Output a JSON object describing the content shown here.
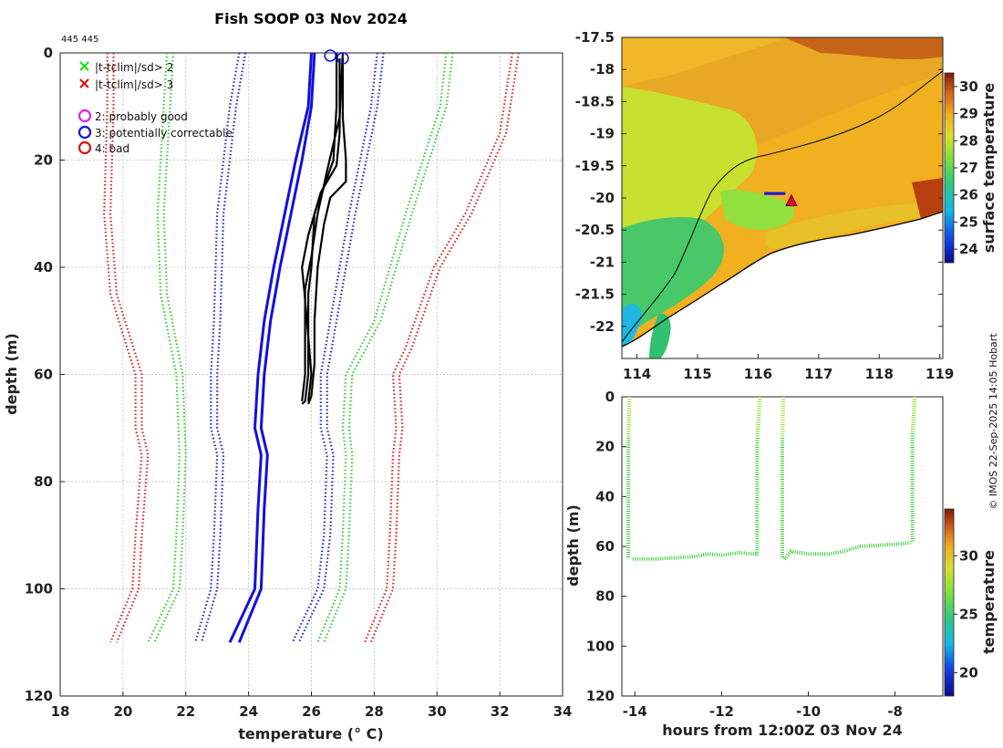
{
  "figure": {
    "title": "Fish SOOP 03 Nov 2024",
    "id_label": "445 445",
    "credit": "© IMOS 22-Sep-2025 14:05 Hobart"
  },
  "chart_data": [
    {
      "type": "line",
      "name": "profile",
      "xlabel": "temperature (° C)",
      "ylabel": "depth (m)",
      "xlim": [
        18,
        34
      ],
      "ylim": [
        0,
        120
      ],
      "y_reversed": true,
      "xticks": [
        18,
        20,
        22,
        24,
        26,
        28,
        30,
        32,
        34
      ],
      "yticks": [
        0,
        20,
        40,
        60,
        80,
        100,
        120
      ],
      "grid": true,
      "legend": {
        "position": "top-left",
        "entries": [
          {
            "marker": "x",
            "color": "#22dd22",
            "label": "|t-tclim|/sd> 2"
          },
          {
            "marker": "x",
            "color": "#dd1111",
            "label": "|t-tclim|/sd> 3"
          },
          {
            "marker": "o",
            "color": "#dd22dd",
            "label": "2: probably good"
          },
          {
            "marker": "o",
            "color": "#1111dd",
            "label": "3: potentially correctable"
          },
          {
            "marker": "o",
            "color": "#dd1111",
            "label": "4: bad"
          }
        ]
      },
      "climatology": [
        {
          "name": "clim-3sd-low-a",
          "color": "#e02020",
          "style": "dotted",
          "points": [
            [
              19.5,
              0
            ],
            [
              19.5,
              10
            ],
            [
              19.4,
              30
            ],
            [
              19.6,
              45
            ],
            [
              20.4,
              60
            ],
            [
              20.4,
              70
            ],
            [
              20.6,
              75
            ],
            [
              20.4,
              90
            ],
            [
              20.3,
              100
            ],
            [
              19.6,
              110
            ]
          ]
        },
        {
          "name": "clim-3sd-low-b",
          "color": "#e02020",
          "style": "dotted",
          "points": [
            [
              19.7,
              0
            ],
            [
              19.7,
              10
            ],
            [
              19.6,
              30
            ],
            [
              19.8,
              45
            ],
            [
              20.6,
              60
            ],
            [
              20.6,
              70
            ],
            [
              20.8,
              75
            ],
            [
              20.6,
              90
            ],
            [
              20.5,
              100
            ],
            [
              19.8,
              110
            ]
          ]
        },
        {
          "name": "clim-2sd-low-a",
          "color": "#33cc33",
          "style": "dotted",
          "points": [
            [
              21.4,
              0
            ],
            [
              21.3,
              10
            ],
            [
              21.1,
              30
            ],
            [
              21.2,
              45
            ],
            [
              21.7,
              60
            ],
            [
              21.8,
              75
            ],
            [
              21.7,
              90
            ],
            [
              21.6,
              100
            ],
            [
              20.8,
              110
            ]
          ]
        },
        {
          "name": "clim-2sd-low-b",
          "color": "#33cc33",
          "style": "dotted",
          "points": [
            [
              21.6,
              0
            ],
            [
              21.5,
              10
            ],
            [
              21.3,
              30
            ],
            [
              21.4,
              45
            ],
            [
              21.9,
              60
            ],
            [
              22.0,
              75
            ],
            [
              21.9,
              90
            ],
            [
              21.8,
              100
            ],
            [
              21.0,
              110
            ]
          ]
        },
        {
          "name": "clim-1sd-low-a",
          "color": "#2222cc",
          "style": "dotted",
          "points": [
            [
              23.7,
              0
            ],
            [
              23.4,
              10
            ],
            [
              23.0,
              30
            ],
            [
              22.9,
              50
            ],
            [
              22.8,
              60
            ],
            [
              22.8,
              70
            ],
            [
              23.0,
              75
            ],
            [
              22.9,
              90
            ],
            [
              22.8,
              100
            ],
            [
              22.3,
              110
            ]
          ]
        },
        {
          "name": "clim-1sd-low-b",
          "color": "#2222cc",
          "style": "dotted",
          "points": [
            [
              23.9,
              0
            ],
            [
              23.6,
              10
            ],
            [
              23.2,
              30
            ],
            [
              23.1,
              50
            ],
            [
              23.0,
              60
            ],
            [
              23.0,
              70
            ],
            [
              23.2,
              75
            ],
            [
              23.1,
              90
            ],
            [
              23.0,
              100
            ],
            [
              22.5,
              110
            ]
          ]
        },
        {
          "name": "clim-1sd-high-a",
          "color": "#2222cc",
          "style": "dotted",
          "points": [
            [
              28.1,
              0
            ],
            [
              27.9,
              10
            ],
            [
              27.2,
              30
            ],
            [
              26.6,
              50
            ],
            [
              26.3,
              60
            ],
            [
              26.3,
              70
            ],
            [
              26.5,
              75
            ],
            [
              26.4,
              90
            ],
            [
              26.2,
              100
            ],
            [
              25.4,
              110
            ]
          ]
        },
        {
          "name": "clim-1sd-high-b",
          "color": "#2222cc",
          "style": "dotted",
          "points": [
            [
              28.3,
              0
            ],
            [
              28.1,
              10
            ],
            [
              27.4,
              30
            ],
            [
              26.8,
              50
            ],
            [
              26.5,
              60
            ],
            [
              26.5,
              70
            ],
            [
              26.7,
              75
            ],
            [
              26.6,
              90
            ],
            [
              26.4,
              100
            ],
            [
              25.6,
              110
            ]
          ]
        },
        {
          "name": "clim-2sd-high-a",
          "color": "#33cc33",
          "style": "dotted",
          "points": [
            [
              30.3,
              0
            ],
            [
              30.1,
              10
            ],
            [
              29.0,
              30
            ],
            [
              28.0,
              50
            ],
            [
              27.1,
              60
            ],
            [
              27.0,
              70
            ],
            [
              27.1,
              75
            ],
            [
              27.0,
              90
            ],
            [
              26.9,
              100
            ],
            [
              26.2,
              110
            ]
          ]
        },
        {
          "name": "clim-2sd-high-b",
          "color": "#33cc33",
          "style": "dotted",
          "points": [
            [
              30.5,
              0
            ],
            [
              30.3,
              10
            ],
            [
              29.2,
              30
            ],
            [
              28.2,
              50
            ],
            [
              27.3,
              60
            ],
            [
              27.2,
              70
            ],
            [
              27.3,
              75
            ],
            [
              27.2,
              90
            ],
            [
              27.1,
              100
            ],
            [
              26.4,
              110
            ]
          ]
        },
        {
          "name": "clim-3sd-high-a",
          "color": "#e02020",
          "style": "dotted",
          "points": [
            [
              32.4,
              0
            ],
            [
              32.0,
              15
            ],
            [
              30.9,
              30
            ],
            [
              29.9,
              40
            ],
            [
              29.0,
              55
            ],
            [
              28.6,
              60
            ],
            [
              28.7,
              70
            ],
            [
              28.6,
              75
            ],
            [
              28.5,
              90
            ],
            [
              28.4,
              100
            ],
            [
              27.7,
              110
            ]
          ]
        },
        {
          "name": "clim-3sd-high-b",
          "color": "#e02020",
          "style": "dotted",
          "points": [
            [
              32.6,
              0
            ],
            [
              32.2,
              15
            ],
            [
              31.1,
              30
            ],
            [
              30.1,
              40
            ],
            [
              29.2,
              55
            ],
            [
              28.8,
              60
            ],
            [
              28.9,
              70
            ],
            [
              28.8,
              75
            ],
            [
              28.7,
              90
            ],
            [
              28.6,
              100
            ],
            [
              27.9,
              110
            ]
          ]
        }
      ],
      "mean_profiles": [
        {
          "name": "mean-a",
          "color": "#1111dd",
          "points": [
            [
              26.0,
              0
            ],
            [
              25.9,
              10
            ],
            [
              25.5,
              20
            ],
            [
              24.8,
              40
            ],
            [
              24.5,
              50
            ],
            [
              24.3,
              60
            ],
            [
              24.2,
              70
            ],
            [
              24.4,
              75
            ],
            [
              24.3,
              85
            ],
            [
              24.2,
              100
            ],
            [
              23.4,
              110
            ]
          ]
        },
        {
          "name": "mean-b",
          "color": "#1111dd",
          "points": [
            [
              26.1,
              0
            ],
            [
              26.0,
              10
            ],
            [
              25.7,
              20
            ],
            [
              25.0,
              40
            ],
            [
              24.7,
              50
            ],
            [
              24.5,
              60
            ],
            [
              24.4,
              70
            ],
            [
              24.6,
              75
            ],
            [
              24.5,
              85
            ],
            [
              24.4,
              100
            ],
            [
              23.7,
              110
            ]
          ]
        }
      ],
      "profiles": [
        {
          "name": "cast-1",
          "color": "#000000",
          "points": [
            [
              26.8,
              0
            ],
            [
              26.8,
              10
            ],
            [
              26.7,
              20
            ],
            [
              26.4,
              25
            ],
            [
              26.1,
              30
            ],
            [
              26.0,
              40
            ],
            [
              25.9,
              45
            ],
            [
              25.9,
              55
            ],
            [
              25.9,
              60
            ],
            [
              25.8,
              65
            ],
            [
              25.7,
              65.5
            ]
          ]
        },
        {
          "name": "cast-2",
          "color": "#000000",
          "points": [
            [
              27.0,
              0
            ],
            [
              26.9,
              12
            ],
            [
              26.5,
              22
            ],
            [
              26.2,
              30
            ],
            [
              26.0,
              38
            ],
            [
              25.8,
              44
            ],
            [
              25.8,
              52
            ],
            [
              25.8,
              60
            ],
            [
              25.7,
              65
            ]
          ]
        },
        {
          "name": "cast-3",
          "color": "#000000",
          "points": [
            [
              27.0,
              1
            ],
            [
              27.0,
              12
            ],
            [
              27.1,
              20
            ],
            [
              27.1,
              24
            ],
            [
              26.6,
              27
            ],
            [
              26.4,
              32
            ],
            [
              26.2,
              40
            ],
            [
              26.1,
              50
            ],
            [
              26.1,
              58
            ],
            [
              26.0,
              64
            ],
            [
              25.9,
              65.5
            ]
          ]
        },
        {
          "name": "cast-4",
          "color": "#000000",
          "points": [
            [
              26.9,
              1
            ],
            [
              26.9,
              15
            ],
            [
              26.8,
              21
            ],
            [
              26.3,
              26
            ],
            [
              25.9,
              34
            ],
            [
              25.7,
              40
            ],
            [
              25.8,
              46
            ],
            [
              25.9,
              53
            ],
            [
              26.0,
              60
            ],
            [
              25.9,
              65
            ]
          ]
        }
      ],
      "flag_markers": [
        {
          "name": "flag-3-a",
          "x": 26.6,
          "y": 0.5,
          "color": "#1111dd"
        },
        {
          "name": "flag-3-b",
          "x": 27.0,
          "y": 1.0,
          "color": "#1111dd"
        }
      ]
    },
    {
      "type": "heatmap",
      "name": "map",
      "xlim": [
        113.75,
        119.05
      ],
      "ylim": [
        -22.5,
        -17.5
      ],
      "xticks": [
        114,
        115,
        116,
        117,
        118,
        119
      ],
      "yticks": [
        -17.5,
        -18,
        -18.5,
        -19,
        -19.5,
        -20,
        -20.5,
        -21,
        -21.5,
        -22
      ],
      "colorbar": {
        "label": "surface temperature",
        "range": [
          23.5,
          30.5
        ],
        "ticks": [
          24,
          25,
          26,
          27,
          28,
          29,
          30
        ]
      },
      "track": [
        {
          "lon": 116.1,
          "lat": -19.93
        },
        {
          "lon": 116.45,
          "lat": -19.93
        }
      ],
      "drop_marker": {
        "lon": 116.55,
        "lat": -20.05
      }
    },
    {
      "type": "scatter",
      "name": "section",
      "xlabel": "hours from 12:00Z 03 Nov 24",
      "ylabel": "depth (m)",
      "xlim": [
        -14.3,
        -6.9
      ],
      "ylim": [
        0,
        120
      ],
      "y_reversed": true,
      "xticks": [
        -14,
        -12,
        -10,
        -8
      ],
      "yticks": [
        0,
        20,
        40,
        60,
        80,
        100,
        120
      ],
      "colorbar": {
        "label": "temperature",
        "range": [
          18,
          34
        ],
        "ticks": [
          20,
          25,
          30
        ]
      },
      "casts": [
        {
          "x0": -14.15,
          "top_x": -14.12,
          "bottom": 65
        },
        {
          "x0": -11.18,
          "top_x": -11.12,
          "bottom": 64
        },
        {
          "x0": -10.6,
          "top_x": -10.58,
          "bottom": 65
        },
        {
          "x0": -7.6,
          "top_x": -7.55,
          "bottom": 58
        }
      ],
      "bottom_trace": [
        [
          -14.05,
          65
        ],
        [
          -13.5,
          65
        ],
        [
          -13.0,
          64.5
        ],
        [
          -12.6,
          64
        ],
        [
          -12.3,
          63
        ],
        [
          -12.0,
          63.5
        ],
        [
          -11.6,
          62.5
        ],
        [
          -11.3,
          63
        ],
        [
          -11.2,
          63
        ],
        [
          -10.55,
          65
        ],
        [
          -10.4,
          62
        ],
        [
          -10.0,
          63
        ],
        [
          -9.5,
          63
        ],
        [
          -9.2,
          62
        ],
        [
          -8.8,
          60
        ],
        [
          -8.3,
          59.5
        ],
        [
          -7.9,
          59
        ],
        [
          -7.65,
          58.5
        ]
      ]
    }
  ]
}
